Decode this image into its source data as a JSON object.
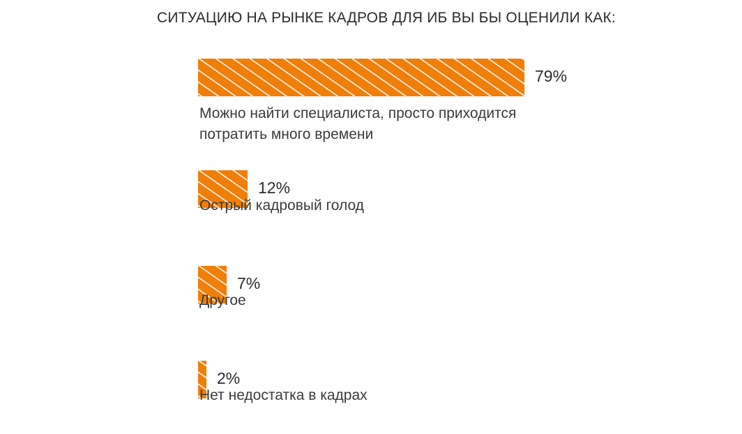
{
  "chart_data": {
    "type": "bar",
    "orientation": "horizontal",
    "title": "СИТУАЦИЮ НА РЫНКЕ КАДРОВ ДЛЯ ИБ ВЫ БЫ ОЦЕНИЛИ КАК:",
    "categories": [
      "Можно найти специалиста, просто приходится потратить много времени",
      "Острый кадровый голод",
      "Другое",
      "Нет недостатка в кадрах"
    ],
    "values": [
      79,
      12,
      7,
      2
    ],
    "value_labels": [
      "79%",
      "12%",
      "7%",
      "2%"
    ],
    "unit": "%",
    "xlim": [
      0,
      79
    ],
    "grid": false,
    "legend": "none",
    "bar_color": "#f07f09",
    "hatch_color": "#ffffff",
    "hatch": "diagonal"
  }
}
